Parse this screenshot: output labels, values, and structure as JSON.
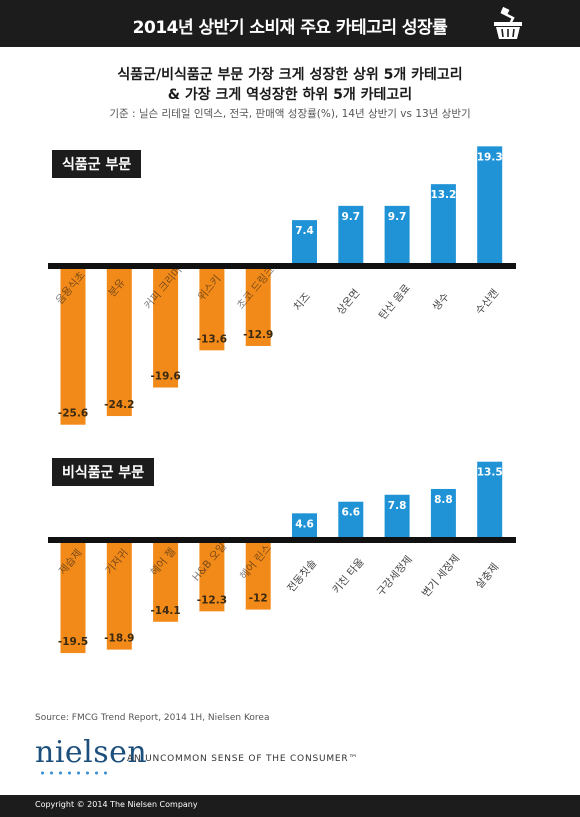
{
  "header": {
    "title": "2014년 상반기 소비재 주요 카테고리 성장률"
  },
  "subtitle": {
    "line1": "식품군/비식품군 부문 가장 크게 성장한 상위 5개 카테고리",
    "line2": "& 가장 크게 역성장한 하위 5개 카테고리"
  },
  "note": "기준 : 닐슨 리테일 인덱스, 전국, 판매액 성장률(%), 14년 상반기 vs 13년 상반기",
  "colors": {
    "negative": "#f28a1a",
    "positive": "#1f93d6",
    "header": "#1c1c1c"
  },
  "sections": [
    {
      "label": "식품군 부문"
    },
    {
      "label": "비식품군 부문"
    }
  ],
  "chart_data": [
    {
      "type": "bar",
      "title": "식품군 부문",
      "categories": [
        "음용식초",
        "분유",
        "커피 크리머",
        "위스키",
        "초코 드링크",
        "치즈",
        "상온면",
        "탄산 음료",
        "생수",
        "수산캔"
      ],
      "values": [
        -25.6,
        -24.2,
        -19.6,
        -13.6,
        -12.9,
        7.4,
        9.7,
        9.7,
        13.2,
        19.3
      ]
    },
    {
      "type": "bar",
      "title": "비식품군 부문",
      "categories": [
        "제습제",
        "기저귀",
        "헤어 젤",
        "H&B 오일",
        "헤어 린스",
        "전동칫솔",
        "키친 타올",
        "구강세정제",
        "변기 세정제",
        "살충제"
      ],
      "values": [
        -19.5,
        -18.9,
        -14.1,
        -12.3,
        -12,
        4.6,
        6.6,
        7.8,
        8.8,
        13.5
      ]
    }
  ],
  "source": "Source: FMCG Trend Report, 2014 1H, Nielsen Korea",
  "logo": "nielsen",
  "tagline": "AN UNCOMMON SENSE OF THE CONSUMER™",
  "footer": "Copyright © 2014 The Nielsen Company"
}
